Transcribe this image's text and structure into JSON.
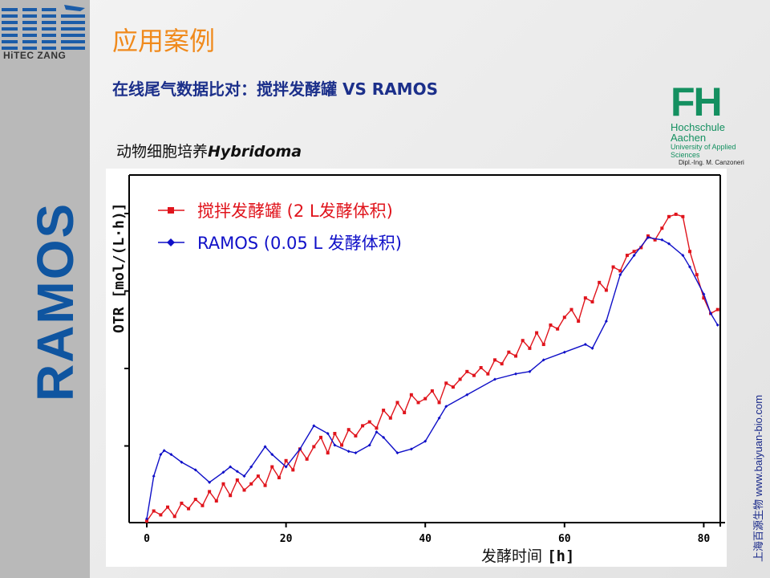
{
  "header": {
    "title": "应用案例",
    "subtitle": "在线尾气数据比对：搅拌发酵罐 VS RAMOS"
  },
  "logos": {
    "hitec": "HiTEC ZANG",
    "ramos": "RAMOS",
    "fh_mark": "FH",
    "fh_line1": "Hochschule Aachen",
    "fh_line2": "University of Applied Sciences",
    "fh_line3": "Dipl.-Ing. M. Canzoneri"
  },
  "credit": "上海百源生物 www.baiyuan-bio.com",
  "chart_data": {
    "type": "line",
    "title_prefix": "动物细胞培养",
    "title_italic": "Hybridoma",
    "xlabel_cn": "发酵时间",
    "xlabel_unit": "[h]",
    "ylabel": "OTR [mol/(L·h)]",
    "xlim": [
      0,
      82
    ],
    "ylim": [
      0,
      4.5
    ],
    "xticks": [
      0,
      20,
      40,
      60,
      80
    ],
    "yticks": [
      1,
      2,
      3,
      4
    ],
    "legend_position": "top-left",
    "series": [
      {
        "name": "搅拌发酵罐 (2 L发酵体积)",
        "color": "#e0141c",
        "marker": "square",
        "x": [
          0,
          1,
          2,
          3,
          4,
          5,
          6,
          7,
          8,
          9,
          10,
          11,
          12,
          13,
          14,
          15,
          16,
          17,
          18,
          19,
          20,
          21,
          22,
          23,
          24,
          25,
          26,
          27,
          28,
          29,
          30,
          31,
          32,
          33,
          34,
          35,
          36,
          37,
          38,
          39,
          40,
          41,
          42,
          43,
          44,
          45,
          46,
          47,
          48,
          49,
          50,
          51,
          52,
          53,
          54,
          55,
          56,
          57,
          58,
          59,
          60,
          61,
          62,
          63,
          64,
          65,
          66,
          67,
          68,
          69,
          70,
          71,
          72,
          73,
          74,
          75,
          76,
          77,
          78,
          79,
          80,
          81,
          82
        ],
        "y": [
          0.02,
          0.15,
          0.1,
          0.2,
          0.08,
          0.25,
          0.18,
          0.3,
          0.22,
          0.4,
          0.28,
          0.5,
          0.35,
          0.55,
          0.42,
          0.5,
          0.6,
          0.48,
          0.72,
          0.58,
          0.8,
          0.68,
          0.95,
          0.82,
          0.98,
          1.1,
          0.9,
          1.15,
          1.0,
          1.2,
          1.12,
          1.25,
          1.3,
          1.22,
          1.45,
          1.35,
          1.55,
          1.42,
          1.65,
          1.55,
          1.6,
          1.7,
          1.55,
          1.8,
          1.75,
          1.85,
          1.95,
          1.9,
          2.0,
          1.92,
          2.1,
          2.05,
          2.2,
          2.15,
          2.35,
          2.25,
          2.45,
          2.3,
          2.55,
          2.5,
          2.65,
          2.75,
          2.6,
          2.9,
          2.85,
          3.1,
          3.0,
          3.3,
          3.25,
          3.45,
          3.5,
          3.55,
          3.7,
          3.65,
          3.8,
          3.95,
          3.98,
          3.95,
          3.5,
          3.2,
          2.9,
          2.7,
          2.75
        ]
      },
      {
        "name": "RAMOS (0.05 L 发酵体积)",
        "color": "#1010c8",
        "marker": "diamond",
        "x": [
          0,
          1,
          2,
          2.5,
          3.5,
          5,
          7,
          9,
          11,
          12,
          13,
          14,
          15,
          17,
          18,
          20,
          22,
          24,
          26,
          27,
          29,
          30,
          32,
          33,
          34,
          36,
          38,
          40,
          42,
          43,
          46,
          50,
          53,
          55,
          57,
          60,
          63,
          64,
          66,
          68,
          70,
          72,
          74,
          75,
          77,
          78,
          80,
          81,
          82
        ],
        "y": [
          0.05,
          0.6,
          0.88,
          0.93,
          0.88,
          0.78,
          0.68,
          0.52,
          0.65,
          0.72,
          0.66,
          0.6,
          0.72,
          0.98,
          0.88,
          0.72,
          0.95,
          1.25,
          1.15,
          1.0,
          0.92,
          0.9,
          1.0,
          1.17,
          1.1,
          0.9,
          0.95,
          1.05,
          1.35,
          1.5,
          1.65,
          1.85,
          1.92,
          1.95,
          2.1,
          2.2,
          2.3,
          2.25,
          2.6,
          3.2,
          3.45,
          3.68,
          3.65,
          3.6,
          3.45,
          3.3,
          2.95,
          2.7,
          2.55
        ]
      }
    ]
  }
}
